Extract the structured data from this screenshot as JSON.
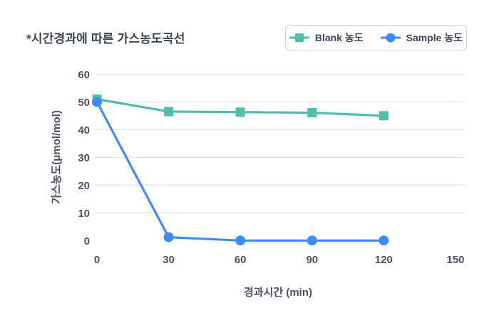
{
  "title": "*시간경과에 따른 가스농도곡선",
  "legend": {
    "items": [
      {
        "key": "blank",
        "label": "Blank 농도",
        "marker": "square",
        "color": "#50BCAC"
      },
      {
        "key": "sample",
        "label": "Sample 농도",
        "marker": "circle",
        "color": "#3E8CFA"
      }
    ]
  },
  "colors": {
    "title_text": "#3A4256",
    "tick_text": "#4A5166",
    "axis_label_text": "#4A5166",
    "gridline": "#E2E5E9",
    "legend_border": "#CFD3D8",
    "blank_series": "#50BCAC",
    "sample_series": "#3E8CFA",
    "background": "#FFFFFF"
  },
  "chart_data": {
    "type": "line",
    "title": "*시간경과에 따른 가스농도곡선",
    "xlabel": "경과시간 (min)",
    "ylabel": "가스농도(μmol/mol)",
    "x": [
      0,
      30,
      60,
      90,
      120
    ],
    "series": [
      {
        "name": "Blank 농도",
        "key": "blank",
        "marker": "square",
        "color": "#50BCAC",
        "values": [
          51,
          46.5,
          46.3,
          46.1,
          45
        ]
      },
      {
        "name": "Sample 농도",
        "key": "sample",
        "marker": "circle",
        "color": "#3E8CFA",
        "values": [
          50,
          1.2,
          0,
          0,
          0
        ]
      }
    ],
    "xlim": [
      0,
      150
    ],
    "ylim": [
      0,
      60
    ],
    "xticks": [
      0,
      30,
      60,
      90,
      120,
      150
    ],
    "yticks": [
      0,
      10,
      20,
      30,
      40,
      50,
      60
    ],
    "grid": "horizontal gridlines only, none at y=0",
    "legend_position": "top-right"
  }
}
